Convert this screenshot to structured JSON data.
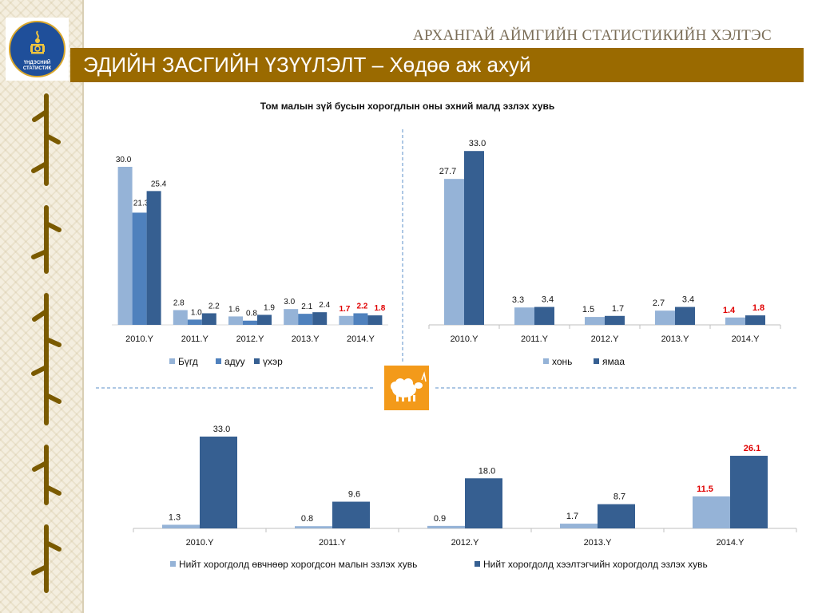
{
  "header": {
    "org_name": "АРХАНГАЙ АЙМГИЙН СТАТИСТИКИЙН ХЭЛТЭС",
    "title": "ЭДИЙН ЗАСГИЙН ҮЗҮҮЛЭЛТ – Хөдөө аж ахуй",
    "logo_text": "ҮНДЭСНИЙ\nСТАТИСТИК"
  },
  "colors": {
    "brand_bar": "#9a6a00",
    "light_blue": "#95b3d7",
    "mid_blue": "#4f81bd",
    "dark_blue": "#365f91",
    "highlight_red": "#e00000",
    "icon_orange": "#f39a1a"
  },
  "icons": {
    "logo": "soyombo-emblem-icon",
    "sheep": "sheep-icon"
  },
  "chart_title": "Том малын зүй бусын хорогдлын оны эхний малд эзлэх хувь",
  "chart_data": [
    {
      "type": "bar",
      "title": "Том малын зүй бусын хорогдлын оны эхний малд эзлэх хувь",
      "categories": [
        "2010.Y",
        "2011.Y",
        "2012.Y",
        "2013.Y",
        "2014.Y"
      ],
      "series": [
        {
          "name": "Бүгд",
          "values": [
            30.0,
            2.8,
            1.6,
            3.0,
            1.7
          ]
        },
        {
          "name": "адуу",
          "values": [
            21.3,
            1.0,
            0.8,
            2.1,
            2.2
          ]
        },
        {
          "name": "үхэр",
          "values": [
            25.4,
            2.2,
            1.9,
            2.4,
            1.8
          ]
        }
      ],
      "value_labels": [
        [
          "30.0",
          "2.8",
          "1.6",
          "3.0",
          "1.7"
        ],
        [
          "21.3",
          "1.0",
          "0.8",
          "2.1",
          "2.2"
        ],
        [
          "25.4",
          "2.2",
          "1.9",
          "2.4",
          "1.8"
        ]
      ],
      "highlight_category": "2014.Y",
      "legend": "bottom",
      "ylim": [
        0,
        35
      ]
    },
    {
      "type": "bar",
      "categories": [
        "2010.Y",
        "2011.Y",
        "2012.Y",
        "2013.Y",
        "2014.Y"
      ],
      "series": [
        {
          "name": "хонь",
          "values": [
            27.7,
            3.3,
            1.5,
            2.7,
            1.4
          ]
        },
        {
          "name": "ямаа",
          "values": [
            33.0,
            3.4,
            1.7,
            3.4,
            1.8
          ]
        }
      ],
      "value_labels": [
        [
          "27.7",
          "3.3",
          "1.5",
          "2.7",
          "1.4"
        ],
        [
          "33.0",
          "3.4",
          "1.7",
          "3.4",
          "1.8"
        ]
      ],
      "highlight_category": "2014.Y",
      "legend": "bottom",
      "ylim": [
        0,
        35
      ]
    },
    {
      "type": "bar",
      "categories": [
        "2010.Y",
        "2011.Y",
        "2012.Y",
        "2013.Y",
        "2014.Y"
      ],
      "series": [
        {
          "name": "Нийт хорогдолд өвчнөөр хорогдсон малын эзлэх хувь",
          "values": [
            1.3,
            0.8,
            0.9,
            1.7,
            11.5
          ]
        },
        {
          "name": "Нийт хорогдолд хээлтэгчийн хорогдолд эзлэх хувь",
          "values": [
            33.0,
            9.6,
            18.0,
            8.7,
            26.1
          ]
        }
      ],
      "value_labels": [
        [
          "1.3",
          "0.8",
          "0.9",
          "1.7",
          "11.5"
        ],
        [
          "33.0",
          "9.6",
          "18.0",
          "8.7",
          "26.1"
        ]
      ],
      "highlight_category": "2014.Y",
      "legend": "bottom",
      "ylim": [
        0,
        35
      ]
    }
  ]
}
